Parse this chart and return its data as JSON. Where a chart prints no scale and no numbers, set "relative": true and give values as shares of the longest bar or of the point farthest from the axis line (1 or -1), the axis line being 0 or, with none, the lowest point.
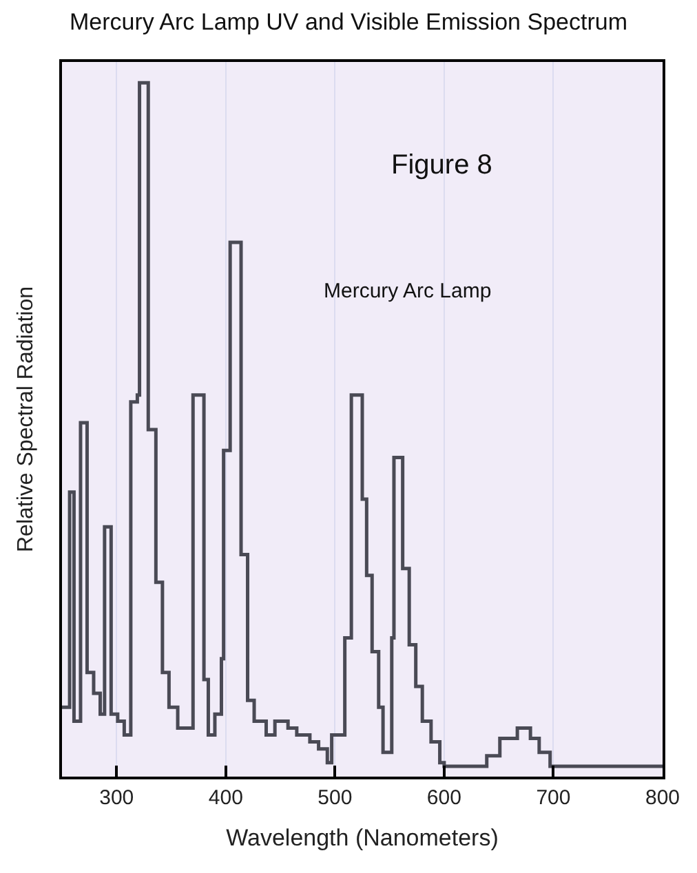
{
  "chart_data": {
    "type": "step",
    "title": "Mercury Arc Lamp UV and Visible Emission Spectrum",
    "xlabel": "Wavelength (Nanometers)",
    "ylabel": "Relative Spectral Radiation",
    "annotations": [
      "Figure 8",
      "Mercury Arc Lamp"
    ],
    "relative": true,
    "xlim": [
      250,
      800
    ],
    "xticks": [
      300,
      400,
      500,
      600,
      700,
      800
    ],
    "grid": "x",
    "series": [
      {
        "color": "#4a4a55",
        "x": [
          250,
          253,
          257,
          261,
          267,
          273,
          279,
          285,
          289,
          295,
          301,
          307,
          313,
          319,
          321,
          329,
          336,
          342,
          348,
          356,
          370,
          380,
          384,
          390,
          396,
          398,
          404,
          414,
          420,
          426,
          437,
          445,
          457,
          465,
          477,
          485,
          493,
          497,
          509,
          515,
          525,
          529,
          534,
          540,
          544,
          552,
          554,
          562,
          568,
          574,
          580,
          588,
          596,
          600,
          639,
          651,
          667,
          679,
          687,
          697,
          800
        ],
        "values": [
          0.1,
          0.1,
          0.41,
          0.08,
          0.51,
          0.15,
          0.12,
          0.09,
          0.36,
          0.09,
          0.08,
          0.06,
          0.54,
          0.55,
          1.0,
          0.5,
          0.28,
          0.15,
          0.1,
          0.07,
          0.55,
          0.14,
          0.06,
          0.09,
          0.17,
          0.47,
          0.77,
          0.32,
          0.11,
          0.08,
          0.06,
          0.08,
          0.07,
          0.06,
          0.05,
          0.04,
          0.02,
          0.06,
          0.2,
          0.55,
          0.4,
          0.29,
          0.18,
          0.1,
          0.035,
          0.2,
          0.46,
          0.3,
          0.19,
          0.13,
          0.08,
          0.05,
          0.02,
          0.015,
          0.03,
          0.055,
          0.07,
          0.055,
          0.035,
          0.015,
          0.015
        ]
      }
    ]
  }
}
